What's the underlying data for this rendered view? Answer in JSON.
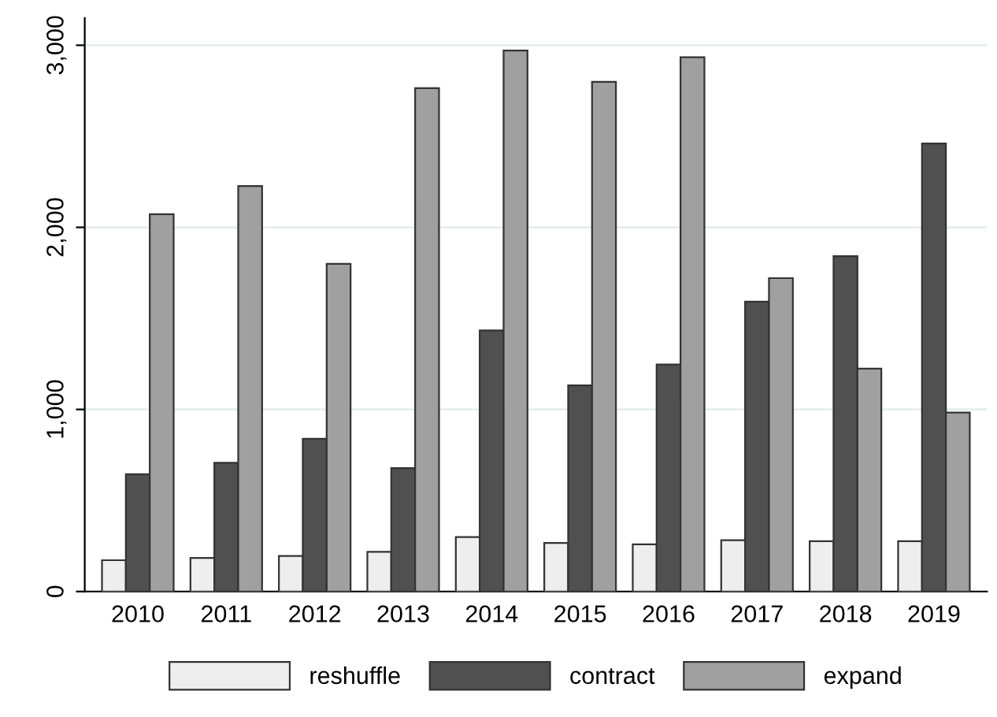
{
  "chart_data": {
    "type": "bar",
    "categories": [
      "2010",
      "2011",
      "2012",
      "2013",
      "2014",
      "2015",
      "2016",
      "2017",
      "2018",
      "2019"
    ],
    "series": [
      {
        "name": "reshuffle",
        "color": "#eeeeee",
        "values": [
          172,
          184,
          195,
          218,
          299,
          267,
          259,
          282,
          276,
          276
        ]
      },
      {
        "name": "contract",
        "color": "#505050",
        "values": [
          644,
          707,
          839,
          678,
          1434,
          1132,
          1247,
          1592,
          1842,
          2460
        ]
      },
      {
        "name": "expand",
        "color": "#a0a0a0",
        "values": [
          2072,
          2227,
          1799,
          2764,
          2971,
          2799,
          2934,
          1721,
          1224,
          983
        ]
      }
    ],
    "ylim": [
      0,
      3150
    ],
    "yticks": [
      {
        "value": 0,
        "label": "0"
      },
      {
        "value": 1000,
        "label": "1,000"
      },
      {
        "value": 2000,
        "label": "2,000"
      },
      {
        "value": 3000,
        "label": "3,000"
      }
    ],
    "grid": "y",
    "legend": "bottom"
  }
}
